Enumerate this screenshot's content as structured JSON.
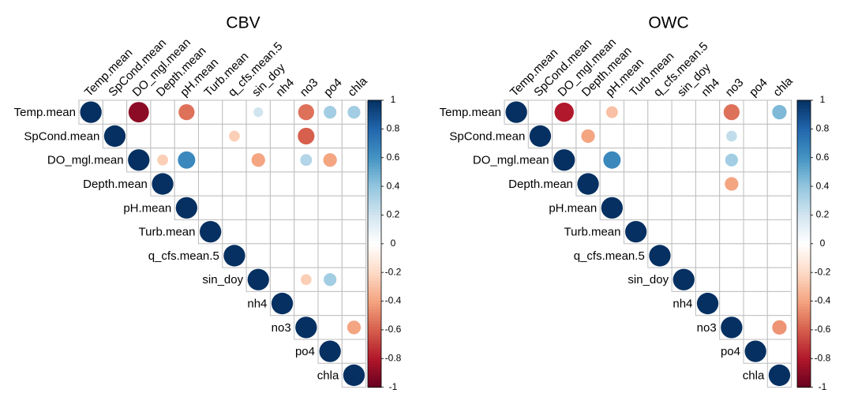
{
  "chart_data": [
    {
      "type": "heatmap",
      "subtype": "correlation-matrix-upper-circles",
      "title": "CBV",
      "variables": [
        "Temp.mean",
        "SpCond.mean",
        "DO_mgl.mean",
        "Depth.mean",
        "pH.mean",
        "Turb.mean",
        "q_cfs.mean.5",
        "sin_doy",
        "nh4",
        "no3",
        "po4",
        "chla"
      ],
      "correlations": [
        {
          "row": "Temp.mean",
          "col": "Temp.mean",
          "value": 1
        },
        {
          "row": "Temp.mean",
          "col": "DO_mgl.mean",
          "value": -0.9
        },
        {
          "row": "Temp.mean",
          "col": "pH.mean",
          "value": -0.55
        },
        {
          "row": "Temp.mean",
          "col": "sin_doy",
          "value": 0.2
        },
        {
          "row": "Temp.mean",
          "col": "no3",
          "value": -0.55
        },
        {
          "row": "Temp.mean",
          "col": "po4",
          "value": 0.35
        },
        {
          "row": "Temp.mean",
          "col": "chla",
          "value": 0.35
        },
        {
          "row": "SpCond.mean",
          "col": "SpCond.mean",
          "value": 1
        },
        {
          "row": "SpCond.mean",
          "col": "q_cfs.mean.5",
          "value": -0.25
        },
        {
          "row": "SpCond.mean",
          "col": "no3",
          "value": -0.6
        },
        {
          "row": "DO_mgl.mean",
          "col": "DO_mgl.mean",
          "value": 1
        },
        {
          "row": "DO_mgl.mean",
          "col": "Depth.mean",
          "value": -0.25
        },
        {
          "row": "DO_mgl.mean",
          "col": "pH.mean",
          "value": 0.65
        },
        {
          "row": "DO_mgl.mean",
          "col": "sin_doy",
          "value": -0.4
        },
        {
          "row": "DO_mgl.mean",
          "col": "no3",
          "value": 0.3
        },
        {
          "row": "DO_mgl.mean",
          "col": "po4",
          "value": -0.4
        },
        {
          "row": "Depth.mean",
          "col": "Depth.mean",
          "value": 1
        },
        {
          "row": "pH.mean",
          "col": "pH.mean",
          "value": 1
        },
        {
          "row": "Turb.mean",
          "col": "Turb.mean",
          "value": 1
        },
        {
          "row": "q_cfs.mean.5",
          "col": "q_cfs.mean.5",
          "value": 1
        },
        {
          "row": "sin_doy",
          "col": "sin_doy",
          "value": 1
        },
        {
          "row": "sin_doy",
          "col": "no3",
          "value": -0.25
        },
        {
          "row": "sin_doy",
          "col": "po4",
          "value": 0.35
        },
        {
          "row": "nh4",
          "col": "nh4",
          "value": 1
        },
        {
          "row": "no3",
          "col": "no3",
          "value": 1
        },
        {
          "row": "no3",
          "col": "chla",
          "value": -0.4
        },
        {
          "row": "po4",
          "col": "po4",
          "value": 1
        },
        {
          "row": "chla",
          "col": "chla",
          "value": 1
        }
      ]
    },
    {
      "type": "heatmap",
      "subtype": "correlation-matrix-upper-circles",
      "title": "OWC",
      "variables": [
        "Temp.mean",
        "SpCond.mean",
        "DO_mgl.mean",
        "Depth.mean",
        "pH.mean",
        "Turb.mean",
        "q_cfs.mean.5",
        "sin_doy",
        "nh4",
        "no3",
        "po4",
        "chla"
      ],
      "correlations": [
        {
          "row": "Temp.mean",
          "col": "Temp.mean",
          "value": 1
        },
        {
          "row": "Temp.mean",
          "col": "DO_mgl.mean",
          "value": -0.8
        },
        {
          "row": "Temp.mean",
          "col": "pH.mean",
          "value": -0.3
        },
        {
          "row": "Temp.mean",
          "col": "no3",
          "value": -0.55
        },
        {
          "row": "Temp.mean",
          "col": "chla",
          "value": 0.45
        },
        {
          "row": "SpCond.mean",
          "col": "SpCond.mean",
          "value": 1
        },
        {
          "row": "SpCond.mean",
          "col": "Depth.mean",
          "value": -0.4
        },
        {
          "row": "SpCond.mean",
          "col": "no3",
          "value": 0.25
        },
        {
          "row": "DO_mgl.mean",
          "col": "DO_mgl.mean",
          "value": 1
        },
        {
          "row": "DO_mgl.mean",
          "col": "pH.mean",
          "value": 0.65
        },
        {
          "row": "DO_mgl.mean",
          "col": "no3",
          "value": 0.35
        },
        {
          "row": "Depth.mean",
          "col": "Depth.mean",
          "value": 1
        },
        {
          "row": "Depth.mean",
          "col": "no3",
          "value": -0.4
        },
        {
          "row": "pH.mean",
          "col": "pH.mean",
          "value": 1
        },
        {
          "row": "Turb.mean",
          "col": "Turb.mean",
          "value": 1
        },
        {
          "row": "q_cfs.mean.5",
          "col": "q_cfs.mean.5",
          "value": 1
        },
        {
          "row": "sin_doy",
          "col": "sin_doy",
          "value": 1
        },
        {
          "row": "nh4",
          "col": "nh4",
          "value": 1
        },
        {
          "row": "no3",
          "col": "no3",
          "value": 1
        },
        {
          "row": "no3",
          "col": "chla",
          "value": -0.45
        },
        {
          "row": "po4",
          "col": "po4",
          "value": 1
        },
        {
          "row": "chla",
          "col": "chla",
          "value": 1
        }
      ]
    }
  ],
  "colorbar": {
    "ticks": [
      "1",
      "0.8",
      "0.6",
      "0.4",
      "0.2",
      "0",
      "-0.2",
      "-0.4",
      "-0.6",
      "-0.8",
      "-1"
    ],
    "range": [
      -1,
      1
    ],
    "palette": [
      "#67001F",
      "#B2182B",
      "#D6604D",
      "#F4A582",
      "#FDDBC7",
      "#FFFFFF",
      "#D1E5F0",
      "#92C5DE",
      "#4393C3",
      "#2166AC",
      "#053061"
    ]
  },
  "grid_color": "#BEBEBE"
}
